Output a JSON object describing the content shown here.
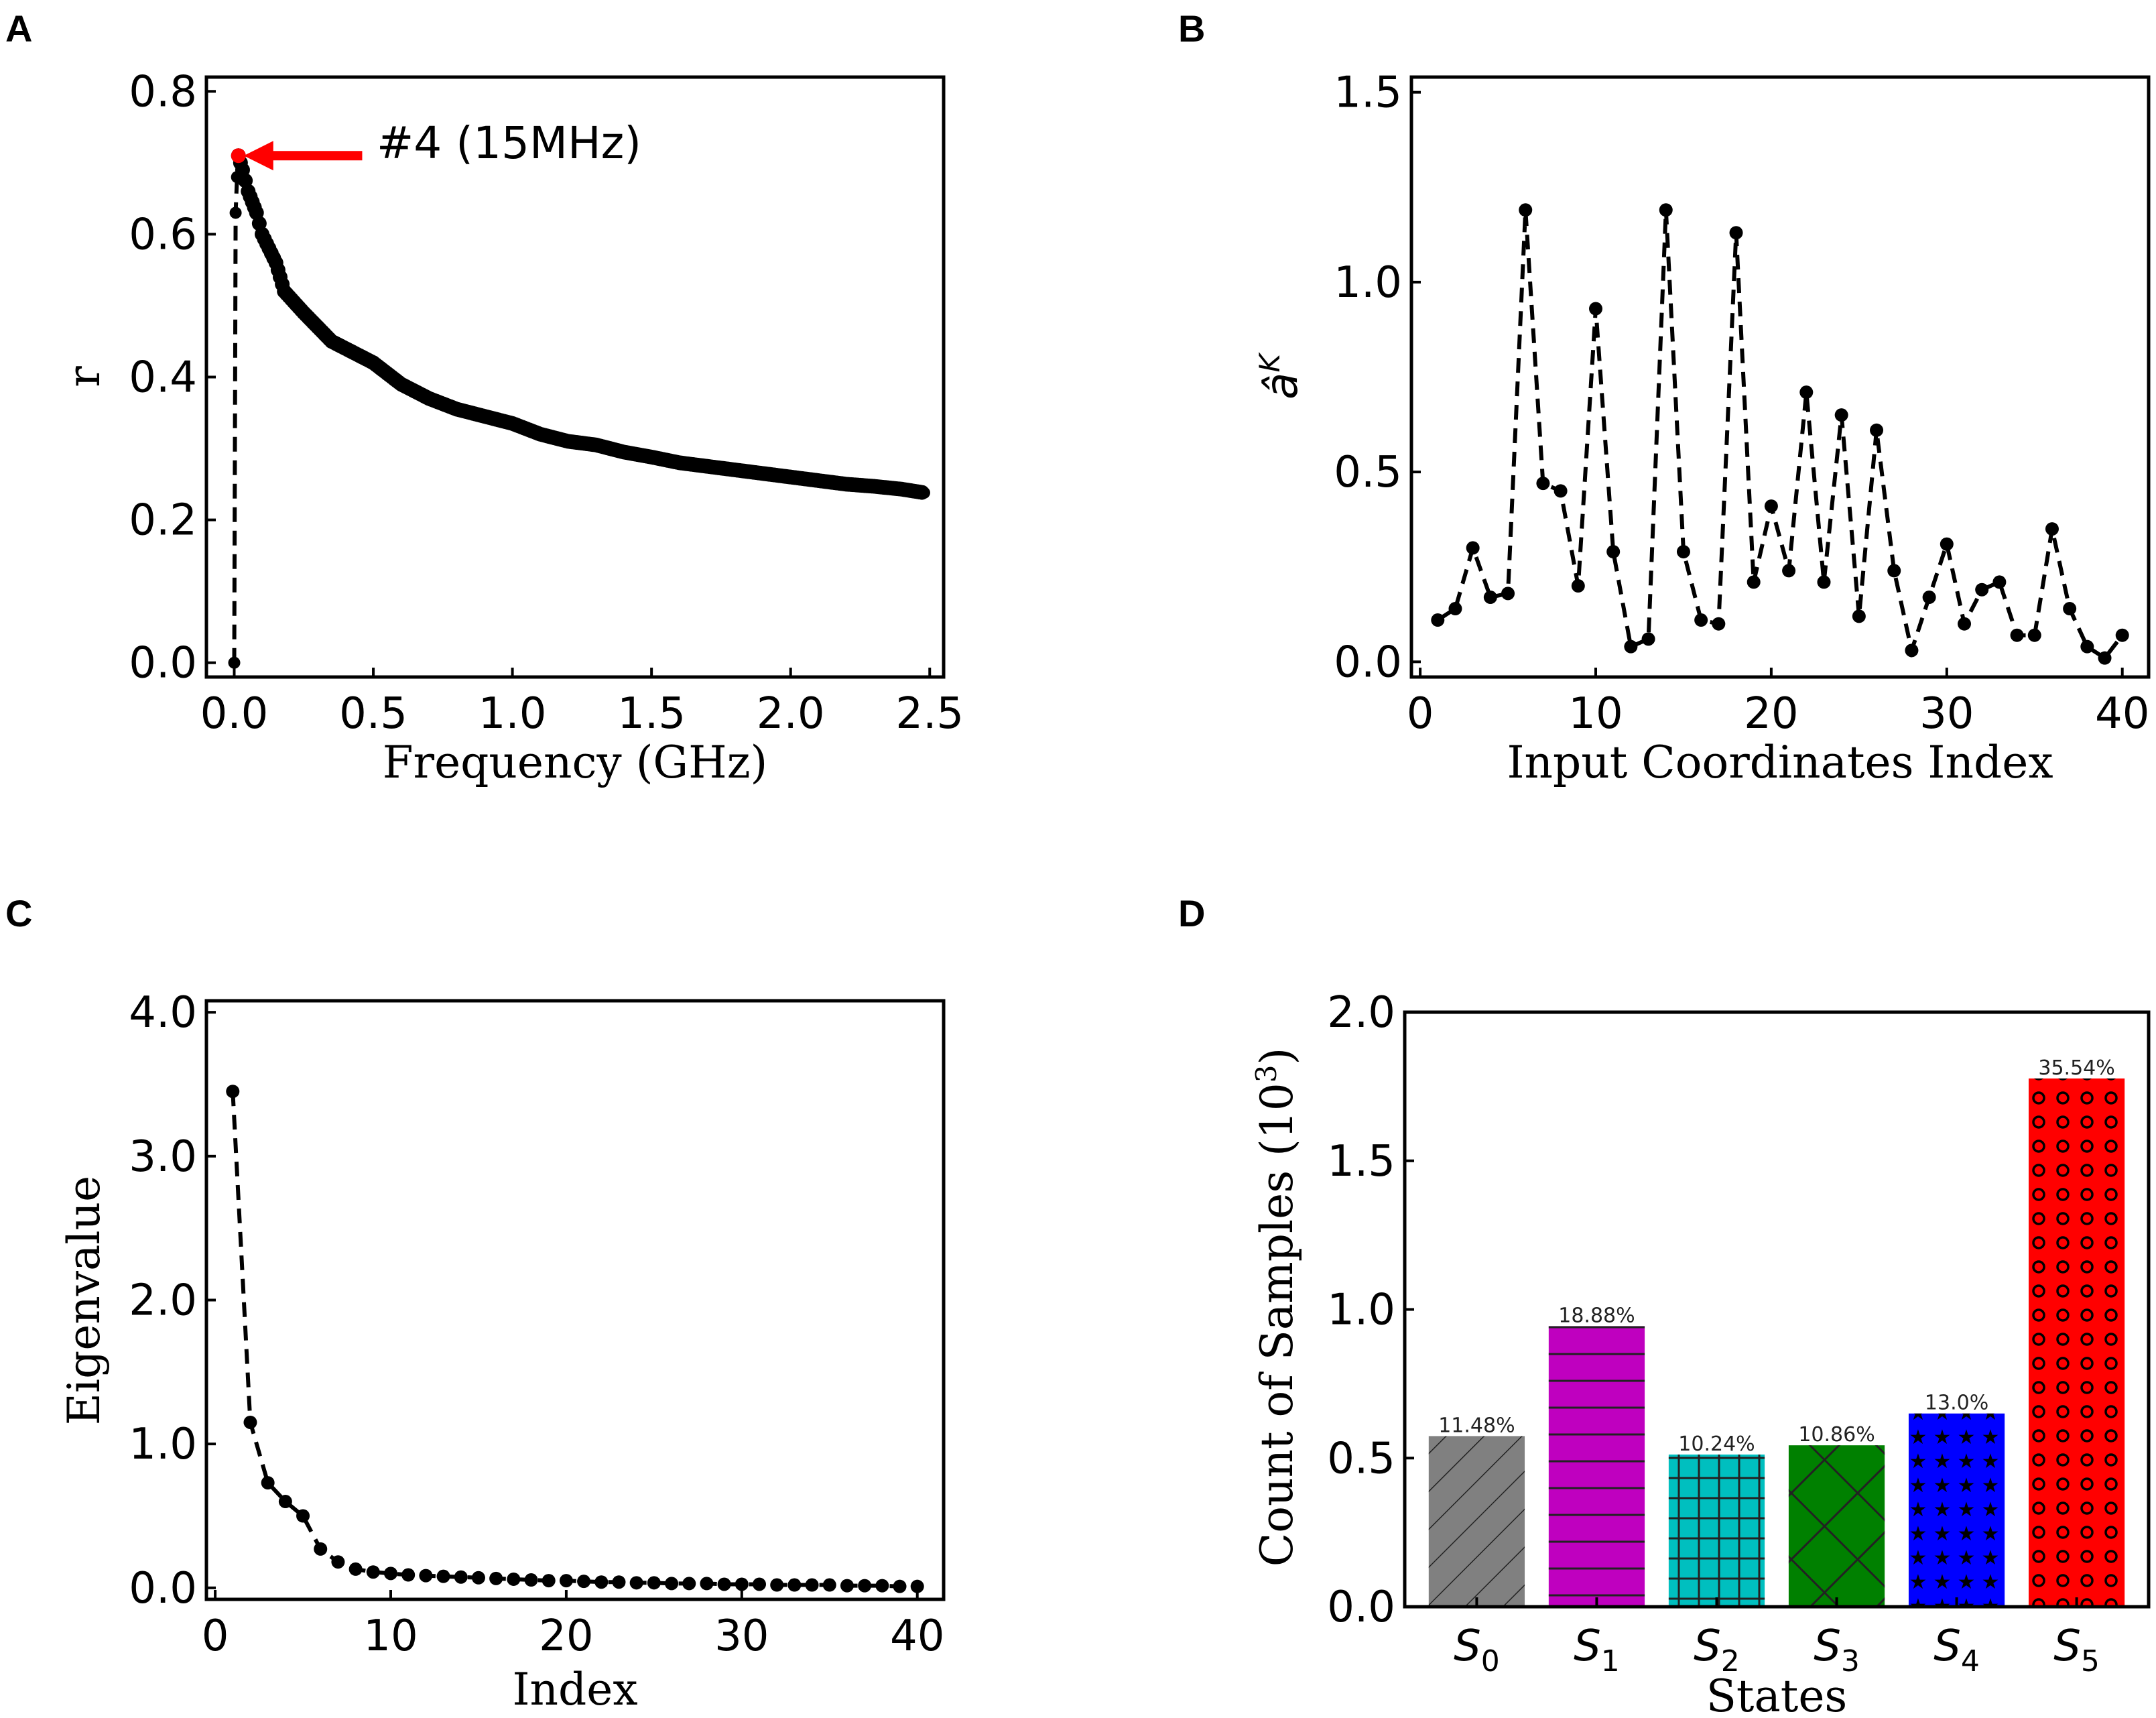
{
  "chart_data": [
    {
      "panel": "A",
      "type": "line",
      "xlabel": "Frequency (GHz)",
      "ylabel": "r",
      "xlim": [
        -0.1,
        2.55
      ],
      "ylim": [
        -0.02,
        0.82
      ],
      "xticks": [
        "0.0",
        "0.5",
        "1.0",
        "1.5",
        "2.0",
        "2.5"
      ],
      "yticks": [
        "0.0",
        "0.2",
        "0.4",
        "0.6",
        "0.8"
      ],
      "annotation": {
        "text": "#4 (15MHz)",
        "color": "#ff0000",
        "x": 0.015,
        "y": 0.71,
        "text_x": 0.46
      },
      "series": [
        {
          "name": "r",
          "x": [
            0.0,
            0.005,
            0.01,
            0.015,
            0.03,
            0.05,
            0.08,
            0.1,
            0.15,
            0.18,
            0.25,
            0.3,
            0.35,
            0.4,
            0.5,
            0.6,
            0.7,
            0.8,
            0.9,
            1.0,
            1.1,
            1.2,
            1.3,
            1.4,
            1.5,
            1.6,
            1.7,
            1.8,
            1.9,
            2.0,
            2.1,
            2.2,
            2.3,
            2.4,
            2.48
          ],
          "y": [
            0.0,
            0.63,
            0.68,
            0.71,
            0.69,
            0.66,
            0.63,
            0.6,
            0.56,
            0.52,
            0.49,
            0.47,
            0.45,
            0.44,
            0.42,
            0.39,
            0.37,
            0.355,
            0.345,
            0.335,
            0.32,
            0.31,
            0.305,
            0.295,
            0.288,
            0.28,
            0.275,
            0.27,
            0.265,
            0.26,
            0.255,
            0.25,
            0.247,
            0.243,
            0.238
          ]
        }
      ]
    },
    {
      "panel": "B",
      "type": "line",
      "xlabel": "Input Coordinates Index",
      "ylabel": "â",
      "ylabel_sup": "K",
      "xlim": [
        -0.5,
        41.5
      ],
      "ylim": [
        -0.04,
        1.54
      ],
      "xticks": [
        "0",
        "10",
        "20",
        "30",
        "40"
      ],
      "yticks": [
        "0.0",
        "0.5",
        "1.0",
        "1.5"
      ],
      "series": [
        {
          "name": "a_K",
          "x": [
            1,
            2,
            3,
            4,
            5,
            6,
            7,
            8,
            9,
            10,
            11,
            12,
            13,
            14,
            15,
            16,
            17,
            18,
            19,
            20,
            21,
            22,
            23,
            24,
            25,
            26,
            27,
            28,
            29,
            30,
            31,
            32,
            33,
            34,
            35,
            36,
            37,
            38,
            39,
            40
          ],
          "y": [
            0.11,
            0.14,
            0.3,
            0.17,
            0.18,
            1.19,
            0.47,
            0.45,
            0.2,
            0.93,
            0.29,
            0.04,
            0.06,
            1.19,
            0.29,
            0.11,
            0.1,
            1.13,
            0.21,
            0.41,
            0.24,
            0.71,
            0.21,
            0.65,
            0.12,
            0.61,
            0.24,
            0.03,
            0.17,
            0.31,
            0.1,
            0.19,
            0.21,
            0.07,
            0.07,
            0.35,
            0.14,
            0.04,
            0.01,
            0.07
          ]
        }
      ]
    },
    {
      "panel": "C",
      "type": "line",
      "xlabel": "Index",
      "ylabel": "Eigenvalue",
      "xlim": [
        -0.5,
        41.5
      ],
      "ylim": [
        -0.08,
        4.08
      ],
      "xticks": [
        "0",
        "10",
        "20",
        "30",
        "40"
      ],
      "yticks": [
        "0.0",
        "1.0",
        "2.0",
        "3.0",
        "4.0"
      ],
      "series": [
        {
          "name": "eigenvalue",
          "x": [
            1,
            2,
            3,
            4,
            5,
            6,
            7,
            8,
            9,
            10,
            11,
            12,
            13,
            14,
            15,
            16,
            17,
            18,
            19,
            20,
            21,
            22,
            23,
            24,
            25,
            26,
            27,
            28,
            29,
            30,
            31,
            32,
            33,
            34,
            35,
            36,
            37,
            38,
            39,
            40
          ],
          "y": [
            3.45,
            1.15,
            0.73,
            0.6,
            0.5,
            0.27,
            0.18,
            0.13,
            0.11,
            0.1,
            0.09,
            0.085,
            0.08,
            0.075,
            0.07,
            0.065,
            0.06,
            0.055,
            0.05,
            0.05,
            0.045,
            0.04,
            0.04,
            0.035,
            0.035,
            0.03,
            0.03,
            0.03,
            0.025,
            0.025,
            0.025,
            0.02,
            0.02,
            0.02,
            0.02,
            0.015,
            0.015,
            0.015,
            0.01,
            0.01
          ]
        }
      ]
    },
    {
      "panel": "D",
      "type": "bar",
      "xlabel": "States",
      "ylabel": "Count of Samples (10",
      "ylabel_sup": "3",
      "ylabel_end": ")",
      "ylim": [
        0,
        2.0
      ],
      "yticks": [
        "0.0",
        "0.5",
        "1.0",
        "1.5",
        "2.0"
      ],
      "categories": [
        {
          "base": "S",
          "sub": "0"
        },
        {
          "base": "S",
          "sub": "1"
        },
        {
          "base": "S",
          "sub": "2"
        },
        {
          "base": "S",
          "sub": "3"
        },
        {
          "base": "S",
          "sub": "4"
        },
        {
          "base": "S",
          "sub": "5"
        }
      ],
      "values": [
        0.574,
        0.944,
        0.512,
        0.543,
        0.65,
        1.777
      ],
      "labels": [
        "11.48%",
        "18.88%",
        "10.24%",
        "10.86%",
        "13.0%",
        "35.54%"
      ],
      "colors": [
        "#808080",
        "#bf00bf",
        "#00bfbf",
        "#008000",
        "#0000ff",
        "#ff0000"
      ],
      "hatches": [
        "diagonal",
        "horizontal",
        "grid",
        "crosshatch",
        "stars",
        "circles"
      ]
    }
  ],
  "panel_letters": [
    "A",
    "B",
    "C",
    "D"
  ]
}
